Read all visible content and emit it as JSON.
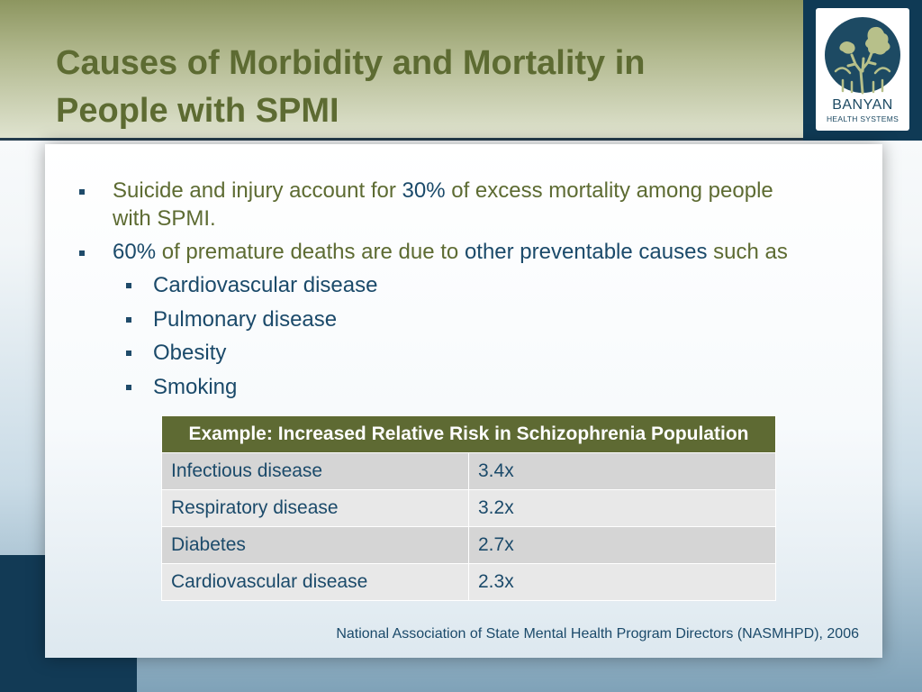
{
  "slide": {
    "title_line1": "Causes of Morbidity and Mortality in",
    "title_line2": "People with SPMI"
  },
  "logo": {
    "name": "BANYAN",
    "subtitle": "HEALTH SYSTEMS"
  },
  "bullets": {
    "b1_pre": "Suicide and injury account for ",
    "b1_highlight": "30%",
    "b1_post": " of excess mortality among people",
    "b1_line2": "with SPMI.",
    "b2_highlight1": "60%",
    "b2_mid": " of premature deaths are due to ",
    "b2_highlight2": "other preventable causes",
    "b2_post": " such as",
    "sub_items": [
      "Cardiovascular disease",
      "Pulmonary disease",
      "Obesity",
      "Smoking"
    ]
  },
  "table": {
    "header": "Example: Increased Relative Risk in Schizophrenia Population",
    "rows": [
      {
        "condition": "Infectious disease",
        "risk": "3.4x"
      },
      {
        "condition": "Respiratory disease",
        "risk": "3.2x"
      },
      {
        "condition": "Diabetes",
        "risk": "2.7x"
      },
      {
        "condition": "Cardiovascular disease",
        "risk": "2.3x"
      }
    ]
  },
  "citation": "National Association of State Mental Health Program Directors (NASMHPD), 2006",
  "colors": {
    "title_olive": "#5d6b32",
    "text_blue": "#1b4a6a",
    "table_header": "#5e6a33",
    "logo_navy": "#0f3a55"
  }
}
